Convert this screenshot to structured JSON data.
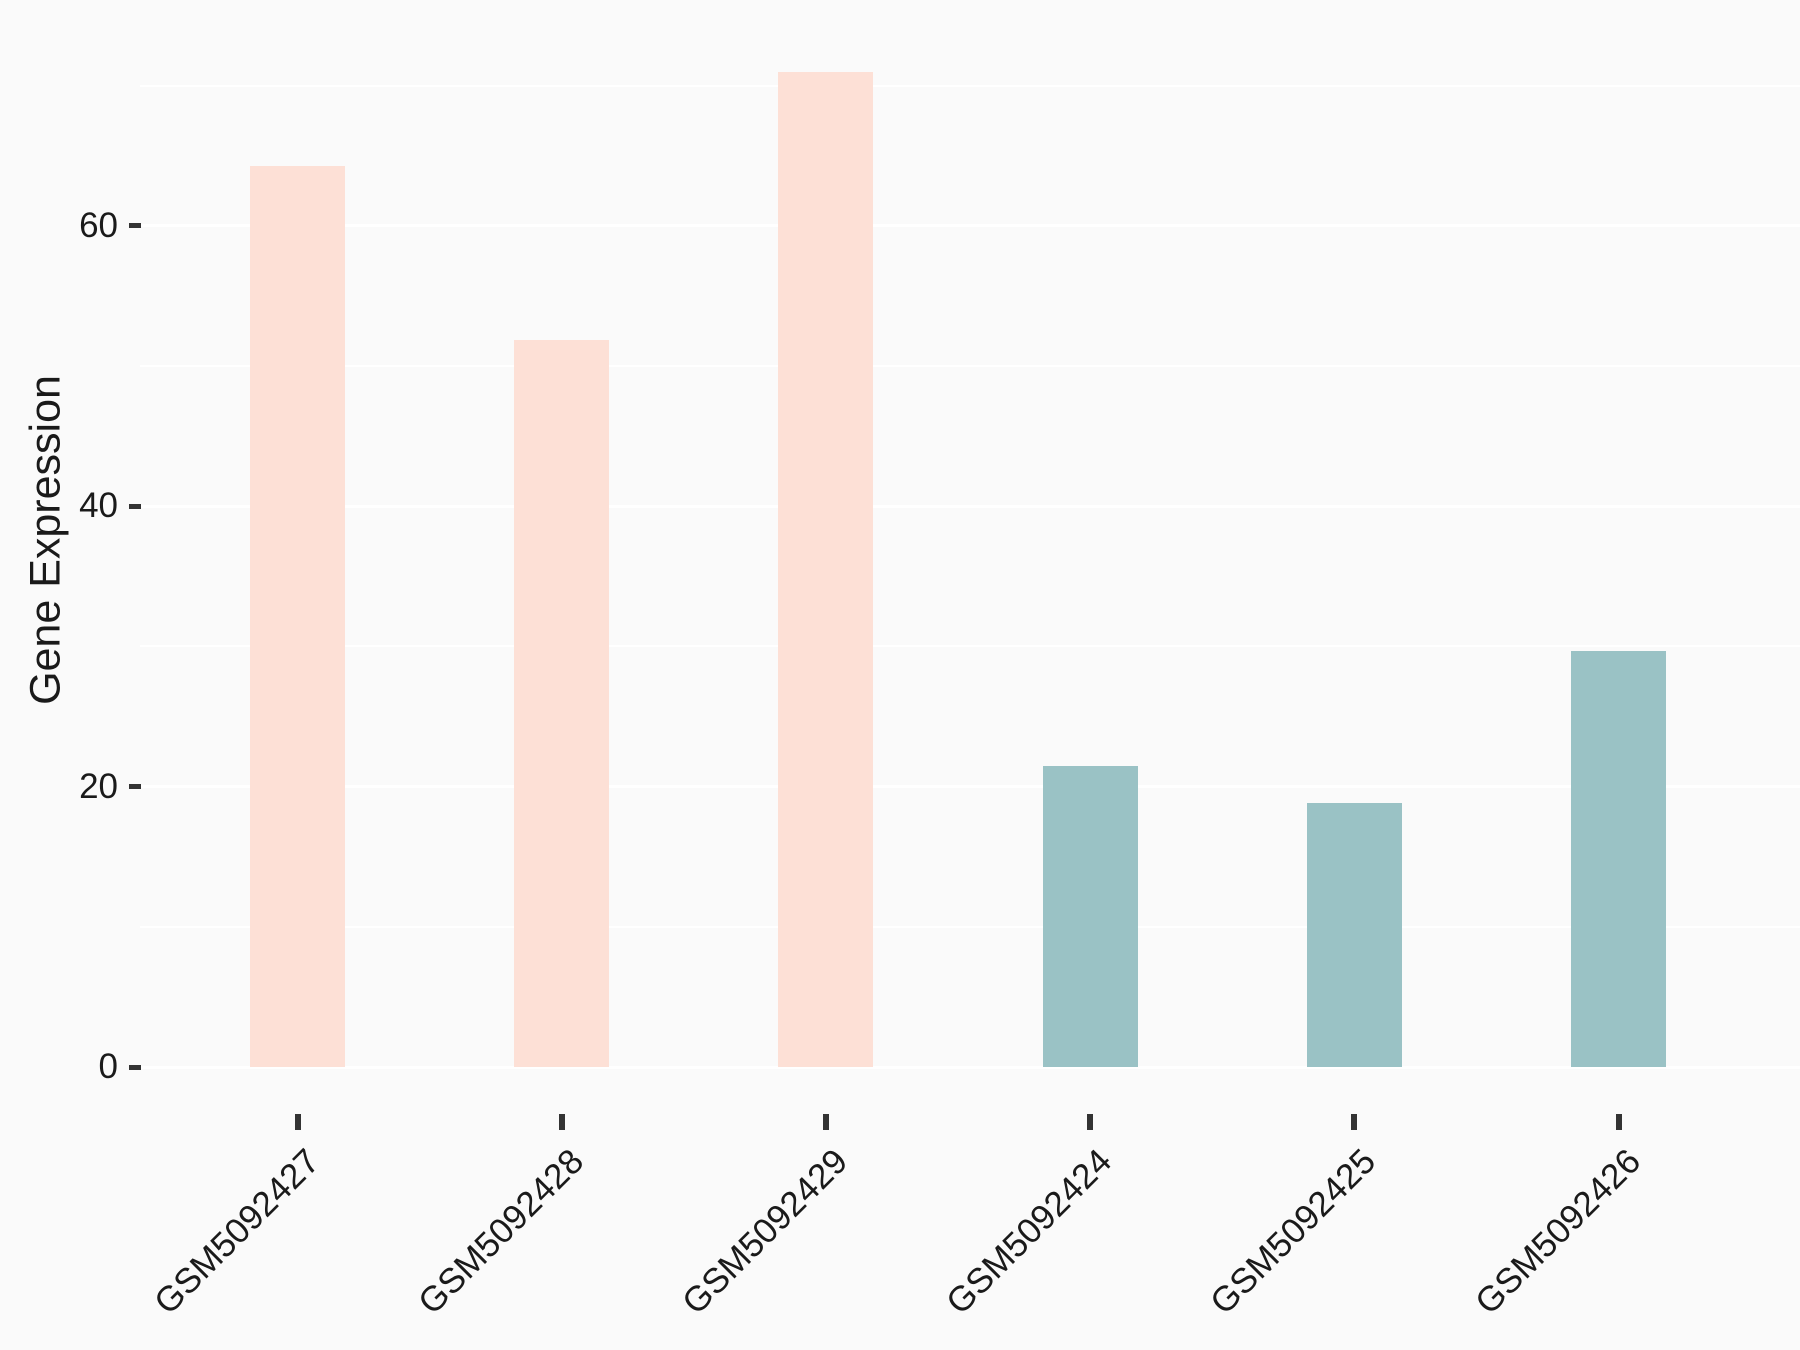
{
  "chart_data": {
    "type": "bar",
    "title": "",
    "xlabel": "",
    "ylabel": "Gene Expression",
    "categories": [
      "GSM5092427",
      "GSM5092428",
      "GSM5092429",
      "GSM5092424",
      "GSM5092425",
      "GSM5092426"
    ],
    "values": [
      64.3,
      51.9,
      71.0,
      21.5,
      18.8,
      29.7
    ],
    "bar_colors": [
      "#fde0d6",
      "#fde0d6",
      "#fde0d6",
      "#9ac2c5",
      "#9ac2c5",
      "#9ac2c5"
    ],
    "group_colors": {
      "first_group": "#fde0d6",
      "second_group": "#9ac2c5"
    },
    "ylim": [
      0,
      74
    ],
    "ytick_labels": [
      "0",
      "20",
      "40",
      "60"
    ],
    "ytick_values": [
      0,
      20,
      40,
      60
    ],
    "minor_gridline_values": [
      10,
      30,
      50,
      70
    ],
    "grid": true,
    "legend_position": "none",
    "background_color": "#fafafa",
    "gridline_color": "#ffffff",
    "tick_color": "#333333",
    "text_color": "#1a1a1a"
  }
}
